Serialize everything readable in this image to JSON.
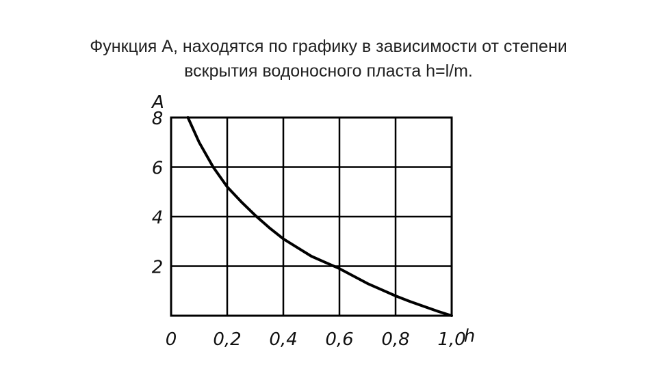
{
  "title": {
    "line1": "Функция А, находятся по графику в зависимости от степени",
    "line2": "вскрытия водоносного пласта h=l/m."
  },
  "chart_data": {
    "type": "line",
    "title": "",
    "xlabel": "h",
    "ylabel": "A",
    "xlim": [
      0,
      1.0
    ],
    "ylim": [
      0,
      8
    ],
    "x_ticks": [
      0,
      0.2,
      0.4,
      0.6,
      0.8,
      1.0
    ],
    "x_tick_labels": [
      "0",
      "0,2",
      "0,4",
      "0,6",
      "0,8",
      "1,0"
    ],
    "y_ticks": [
      2,
      4,
      6,
      8
    ],
    "y_tick_labels": [
      "2",
      "4",
      "6",
      "8"
    ],
    "grid": true,
    "series": [
      {
        "x": [
          0.06,
          0.1,
          0.15,
          0.2,
          0.25,
          0.3,
          0.35,
          0.4,
          0.45,
          0.5,
          0.55,
          0.6,
          0.65,
          0.7,
          0.75,
          0.8,
          0.85,
          0.9,
          0.95,
          1.0
        ],
        "values": [
          8.0,
          7.0,
          6.0,
          5.2,
          4.6,
          4.05,
          3.55,
          3.1,
          2.75,
          2.4,
          2.15,
          1.9,
          1.6,
          1.3,
          1.05,
          0.8,
          0.58,
          0.38,
          0.18,
          0.0
        ]
      }
    ],
    "colors": {
      "line": "#000000",
      "grid": "#000000"
    }
  }
}
